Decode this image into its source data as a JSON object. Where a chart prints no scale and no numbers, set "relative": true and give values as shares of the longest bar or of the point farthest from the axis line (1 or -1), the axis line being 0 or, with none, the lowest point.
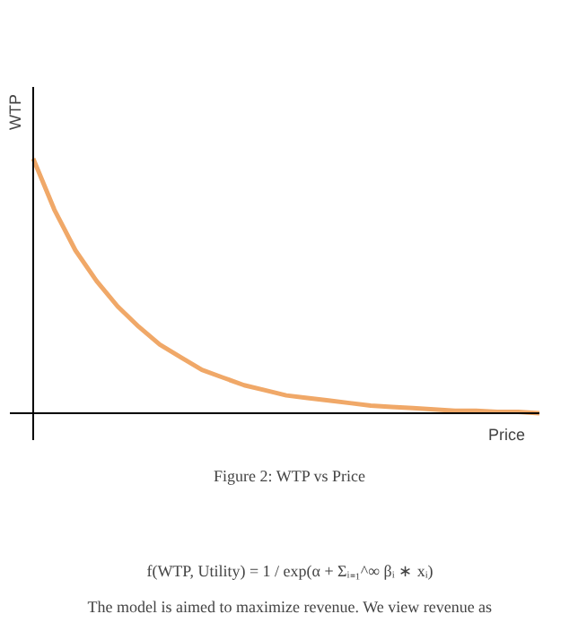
{
  "chart_data": {
    "type": "line",
    "relative": true,
    "xlabel": "Price",
    "ylabel": "WTP",
    "color": "#f0a868",
    "categories": [
      null,
      null,
      null,
      null,
      null,
      null,
      null,
      null,
      null,
      null,
      null,
      null,
      null,
      null,
      null,
      null,
      null,
      null,
      null,
      null,
      null,
      null,
      null,
      null,
      null
    ],
    "values": [
      1,
      0.8,
      0.64,
      0.52,
      0.42,
      0.34,
      0.27,
      0.22,
      0.17,
      0.14,
      0.11,
      0.09,
      0.07,
      0.06,
      0.05,
      0.04,
      0.03,
      0.025,
      0.02,
      0.015,
      0.01,
      0.01,
      0.005,
      0.005,
      0
    ],
    "annotations": [
      "Figure 2: WTP vs Price",
      "f(WTP, Utility) = 1 / exp(α + Σᵢ₌₁^∞ βᵢ ∗ xᵢ)",
      "The model is aimed to maximize revenue. We view revenue as"
    ]
  }
}
